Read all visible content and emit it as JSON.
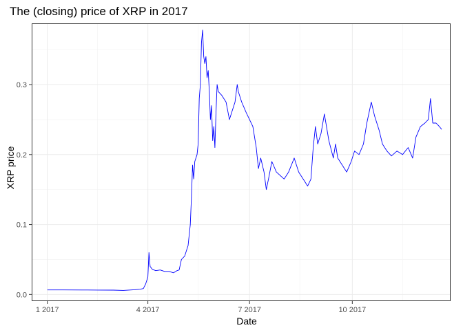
{
  "chart_data": {
    "type": "line",
    "title": "The (closing) price of XRP in 2017",
    "xlabel": "Date",
    "ylabel": "XRP price",
    "x_ticks": [
      {
        "label": "1 2017",
        "month": 1
      },
      {
        "label": "4 2017",
        "month": 4
      },
      {
        "label": "7 2017",
        "month": 7
      },
      {
        "label": "10 2017",
        "month": 10
      }
    ],
    "y_ticks": [
      {
        "label": "0.0",
        "value": 0.0
      },
      {
        "label": "0.1",
        "value": 0.1
      },
      {
        "label": "0.2",
        "value": 0.2
      },
      {
        "label": "0.3",
        "value": 0.3
      }
    ],
    "xlim": [
      "2016-12-18",
      "2017-12-28"
    ],
    "ylim": [
      -0.0095,
      0.3875
    ],
    "grid": true,
    "series": [
      {
        "color": "#0000ff",
        "points": [
          [
            "2017-01-01",
            0.0065
          ],
          [
            "2017-01-15",
            0.0065
          ],
          [
            "2017-02-01",
            0.0064
          ],
          [
            "2017-02-15",
            0.0063
          ],
          [
            "2017-03-01",
            0.0062
          ],
          [
            "2017-03-10",
            0.0058
          ],
          [
            "2017-03-20",
            0.0068
          ],
          [
            "2017-03-25",
            0.0075
          ],
          [
            "2017-03-28",
            0.0085
          ],
          [
            "2017-03-30",
            0.015
          ],
          [
            "2017-04-01",
            0.025
          ],
          [
            "2017-04-02",
            0.06
          ],
          [
            "2017-04-03",
            0.04
          ],
          [
            "2017-04-05",
            0.036
          ],
          [
            "2017-04-08",
            0.034
          ],
          [
            "2017-04-12",
            0.035
          ],
          [
            "2017-04-16",
            0.033
          ],
          [
            "2017-04-20",
            0.033
          ],
          [
            "2017-04-24",
            0.031
          ],
          [
            "2017-04-27",
            0.034
          ],
          [
            "2017-04-29",
            0.035
          ],
          [
            "2017-05-01",
            0.05
          ],
          [
            "2017-05-04",
            0.055
          ],
          [
            "2017-05-07",
            0.07
          ],
          [
            "2017-05-09",
            0.1
          ],
          [
            "2017-05-10",
            0.14
          ],
          [
            "2017-05-11",
            0.185
          ],
          [
            "2017-05-12",
            0.165
          ],
          [
            "2017-05-13",
            0.19
          ],
          [
            "2017-05-15",
            0.2
          ],
          [
            "2017-05-16",
            0.215
          ],
          [
            "2017-05-17",
            0.28
          ],
          [
            "2017-05-18",
            0.3
          ],
          [
            "2017-05-19",
            0.36
          ],
          [
            "2017-05-20",
            0.378
          ],
          [
            "2017-05-21",
            0.34
          ],
          [
            "2017-05-22",
            0.33
          ],
          [
            "2017-05-23",
            0.34
          ],
          [
            "2017-05-24",
            0.31
          ],
          [
            "2017-05-25",
            0.32
          ],
          [
            "2017-05-26",
            0.29
          ],
          [
            "2017-05-27",
            0.25
          ],
          [
            "2017-05-28",
            0.27
          ],
          [
            "2017-05-29",
            0.22
          ],
          [
            "2017-05-30",
            0.24
          ],
          [
            "2017-05-31",
            0.21
          ],
          [
            "2017-06-01",
            0.26
          ],
          [
            "2017-06-02",
            0.3
          ],
          [
            "2017-06-03",
            0.29
          ],
          [
            "2017-06-06",
            0.285
          ],
          [
            "2017-06-10",
            0.275
          ],
          [
            "2017-06-13",
            0.25
          ],
          [
            "2017-06-15",
            0.26
          ],
          [
            "2017-06-18",
            0.275
          ],
          [
            "2017-06-20",
            0.3
          ],
          [
            "2017-06-21",
            0.29
          ],
          [
            "2017-06-24",
            0.275
          ],
          [
            "2017-06-28",
            0.26
          ],
          [
            "2017-07-01",
            0.25
          ],
          [
            "2017-07-04",
            0.24
          ],
          [
            "2017-07-07",
            0.21
          ],
          [
            "2017-07-09",
            0.18
          ],
          [
            "2017-07-11",
            0.195
          ],
          [
            "2017-07-14",
            0.175
          ],
          [
            "2017-07-16",
            0.15
          ],
          [
            "2017-07-18",
            0.165
          ],
          [
            "2017-07-21",
            0.19
          ],
          [
            "2017-07-25",
            0.175
          ],
          [
            "2017-08-01",
            0.165
          ],
          [
            "2017-08-05",
            0.175
          ],
          [
            "2017-08-10",
            0.195
          ],
          [
            "2017-08-14",
            0.175
          ],
          [
            "2017-08-18",
            0.165
          ],
          [
            "2017-08-22",
            0.155
          ],
          [
            "2017-08-25",
            0.165
          ],
          [
            "2017-08-27",
            0.21
          ],
          [
            "2017-08-29",
            0.24
          ],
          [
            "2017-08-31",
            0.215
          ],
          [
            "2017-09-03",
            0.23
          ],
          [
            "2017-09-06",
            0.258
          ],
          [
            "2017-09-10",
            0.22
          ],
          [
            "2017-09-14",
            0.195
          ],
          [
            "2017-09-16",
            0.215
          ],
          [
            "2017-09-18",
            0.195
          ],
          [
            "2017-09-22",
            0.185
          ],
          [
            "2017-09-26",
            0.175
          ],
          [
            "2017-09-30",
            0.19
          ],
          [
            "2017-10-03",
            0.205
          ],
          [
            "2017-10-07",
            0.2
          ],
          [
            "2017-10-11",
            0.215
          ],
          [
            "2017-10-14",
            0.245
          ],
          [
            "2017-10-18",
            0.275
          ],
          [
            "2017-10-21",
            0.255
          ],
          [
            "2017-10-25",
            0.235
          ],
          [
            "2017-10-28",
            0.215
          ],
          [
            "2017-11-01",
            0.205
          ],
          [
            "2017-11-05",
            0.198
          ],
          [
            "2017-11-10",
            0.205
          ],
          [
            "2017-11-15",
            0.2
          ],
          [
            "2017-11-20",
            0.21
          ],
          [
            "2017-11-24",
            0.195
          ],
          [
            "2017-11-27",
            0.225
          ],
          [
            "2017-12-01",
            0.24
          ],
          [
            "2017-12-05",
            0.245
          ],
          [
            "2017-12-08",
            0.25
          ],
          [
            "2017-12-10",
            0.28
          ],
          [
            "2017-12-12",
            0.245
          ],
          [
            "2017-12-15",
            0.245
          ],
          [
            "2017-12-18",
            0.24
          ],
          [
            "2017-12-20",
            0.236
          ]
        ]
      }
    ]
  }
}
